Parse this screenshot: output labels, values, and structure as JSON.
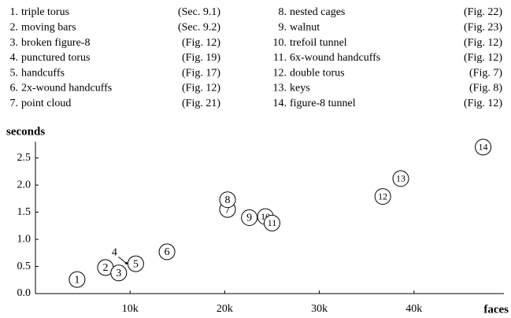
{
  "legend": [
    {
      "number": "1.",
      "name": "triple torus",
      "ref": "(Sec. 9.1)"
    },
    {
      "number": "2.",
      "name": "moving bars",
      "ref": "(Sec. 9.2)"
    },
    {
      "number": "3.",
      "name": "broken figure-8",
      "ref": "(Fig. 12)"
    },
    {
      "number": "4.",
      "name": "punctured torus",
      "ref": "(Fig. 19)"
    },
    {
      "number": "5.",
      "name": "handcuffs",
      "ref": "(Fig. 17)"
    },
    {
      "number": "6.",
      "name": "2x-wound handcuffs",
      "ref": "(Fig. 12)"
    },
    {
      "number": "7.",
      "name": "point cloud",
      "ref": "(Fig. 21)"
    },
    {
      "number": "8.",
      "name": "nested cages",
      "ref": "(Fig. 22)"
    },
    {
      "number": "9.",
      "name": "walnut",
      "ref": "(Fig. 23)"
    },
    {
      "number": "10.",
      "name": "trefoil tunnel",
      "ref": "(Fig. 12)"
    },
    {
      "number": "11.",
      "name": "6x-wound handcuffs",
      "ref": "(Fig. 12)"
    },
    {
      "number": "12.",
      "name": "double torus",
      "ref": "(Fig. 7)"
    },
    {
      "number": "13.",
      "name": "keys",
      "ref": "(Fig. 8)"
    },
    {
      "number": "14.",
      "name": "figure-8 tunnel",
      "ref": "(Fig. 12)"
    }
  ],
  "chart_data": {
    "type": "scatter",
    "x_label": "faces",
    "y_label": "seconds",
    "x": [
      4400,
      7400,
      8800,
      9600,
      10600,
      13900,
      20300,
      20300,
      22600,
      24300,
      25000,
      36700,
      38600,
      47300
    ],
    "values": [
      0.26,
      0.48,
      0.38,
      0.56,
      0.55,
      0.77,
      1.55,
      1.73,
      1.4,
      1.42,
      1.3,
      1.79,
      2.12,
      2.7
    ],
    "labels": [
      "1",
      "2",
      "3",
      "4",
      "5",
      "6",
      "7",
      "8",
      "9",
      "10",
      "11",
      "12",
      "13",
      "14"
    ],
    "xlim": [
      0,
      49500
    ],
    "ylim": [
      0,
      2.8
    ],
    "xticks": [
      {
        "value": 10000,
        "label": "10k"
      },
      {
        "value": 20000,
        "label": "20k"
      },
      {
        "value": 30000,
        "label": "30k"
      },
      {
        "value": 40000,
        "label": "40k"
      }
    ],
    "yticks": [
      {
        "value": 0,
        "label": "0.0"
      },
      0.5,
      {
        "value": 1,
        "label": "1.0"
      },
      1.5,
      {
        "value": 2,
        "label": "2.0"
      },
      2.5
    ]
  }
}
